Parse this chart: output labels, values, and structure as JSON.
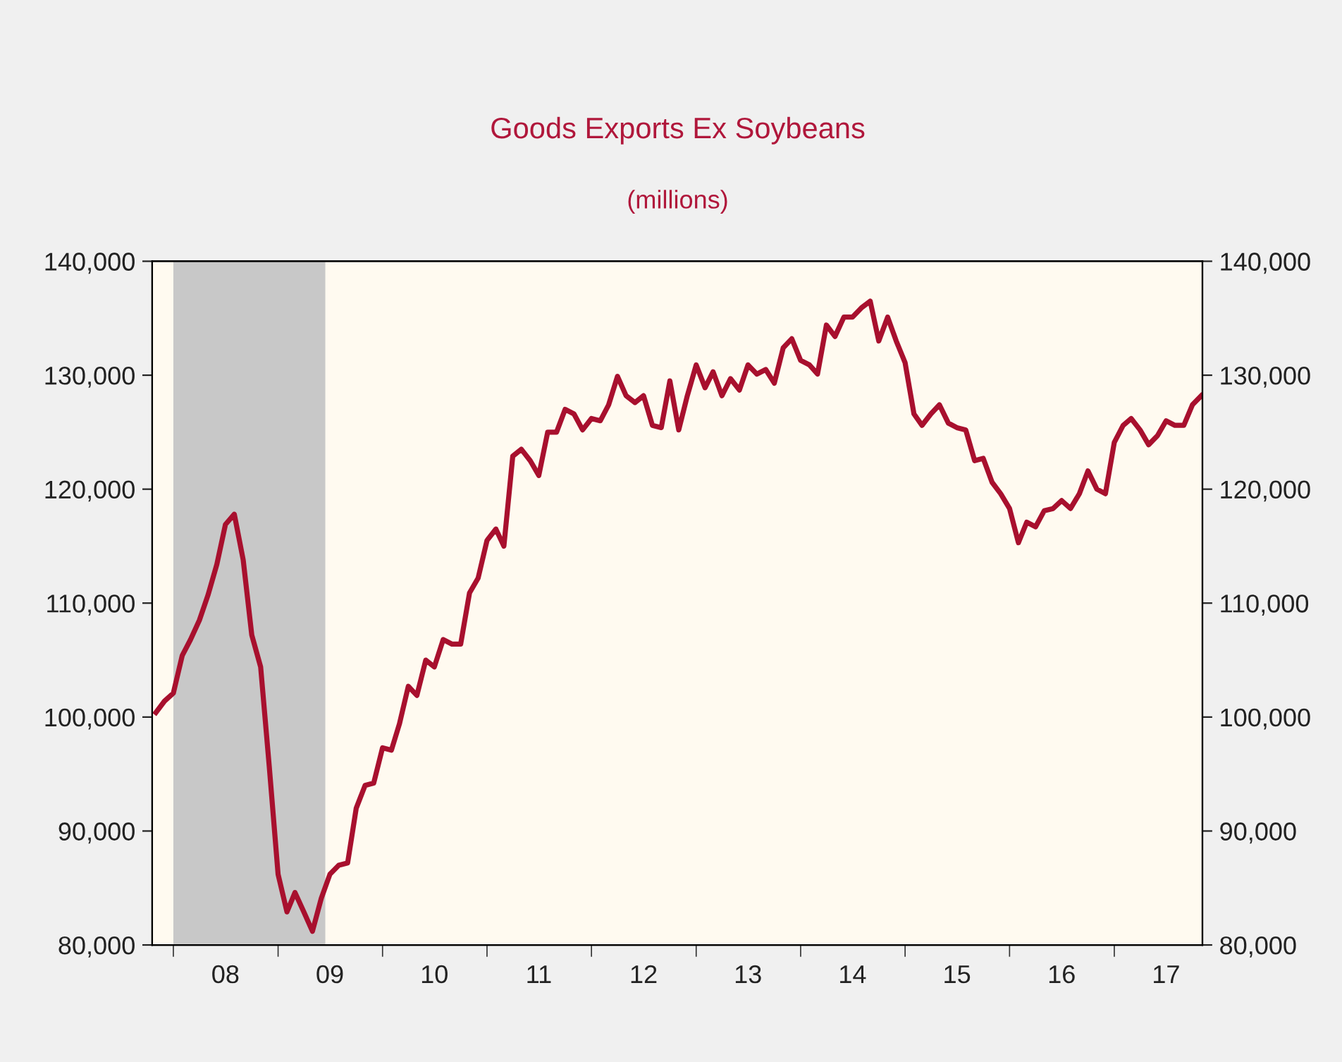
{
  "chart_data": {
    "type": "line",
    "title": "Goods Exports Ex Soybeans",
    "subtitle": "(millions)",
    "x": [
      "2007-11",
      "2007-12",
      "2008-01",
      "2008-02",
      "2008-03",
      "2008-04",
      "2008-05",
      "2008-06",
      "2008-07",
      "2008-08",
      "2008-09",
      "2008-10",
      "2008-11",
      "2008-12",
      "2009-01",
      "2009-02",
      "2009-03",
      "2009-04",
      "2009-05",
      "2009-06",
      "2009-07",
      "2009-08",
      "2009-09",
      "2009-10",
      "2009-11",
      "2009-12",
      "2010-01",
      "2010-02",
      "2010-03",
      "2010-04",
      "2010-05",
      "2010-06",
      "2010-07",
      "2010-08",
      "2010-09",
      "2010-10",
      "2010-11",
      "2010-12",
      "2011-01",
      "2011-02",
      "2011-03",
      "2011-04",
      "2011-05",
      "2011-06",
      "2011-07",
      "2011-08",
      "2011-09",
      "2011-10",
      "2011-11",
      "2011-12",
      "2012-01",
      "2012-02",
      "2012-03",
      "2012-04",
      "2012-05",
      "2012-06",
      "2012-07",
      "2012-08",
      "2012-09",
      "2012-10",
      "2012-11",
      "2012-12",
      "2013-01",
      "2013-02",
      "2013-03",
      "2013-04",
      "2013-05",
      "2013-06",
      "2013-07",
      "2013-08",
      "2013-09",
      "2013-10",
      "2013-11",
      "2013-12",
      "2014-01",
      "2014-02",
      "2014-03",
      "2014-04",
      "2014-05",
      "2014-06",
      "2014-07",
      "2014-08",
      "2014-09",
      "2014-10",
      "2014-11",
      "2014-12",
      "2015-01",
      "2015-02",
      "2015-03",
      "2015-04",
      "2015-05",
      "2015-06",
      "2015-07",
      "2015-08",
      "2015-09",
      "2015-10",
      "2015-11",
      "2015-12",
      "2016-01",
      "2016-02",
      "2016-03",
      "2016-04",
      "2016-05",
      "2016-06",
      "2016-07",
      "2016-08",
      "2016-09",
      "2016-10",
      "2016-11",
      "2016-12",
      "2017-01",
      "2017-02",
      "2017-03",
      "2017-04",
      "2017-05",
      "2017-06",
      "2017-07",
      "2017-08",
      "2017-09",
      "2017-10",
      "2017-11"
    ],
    "series": [
      {
        "color": "#a8102e",
        "values": [
          100400,
          101400,
          102100,
          105400,
          106800,
          108500,
          110700,
          113400,
          116900,
          117800,
          113800,
          107200,
          104400,
          95700,
          86200,
          82900,
          84600,
          82900,
          81200,
          84100,
          86200,
          87000,
          87200,
          92000,
          94000,
          94200,
          97300,
          97100,
          99400,
          102700,
          101900,
          105000,
          104400,
          106800,
          106400,
          106400,
          110900,
          112200,
          115500,
          116500,
          115000,
          122900,
          123500,
          122500,
          121200,
          125000,
          125000,
          127000,
          126600,
          125200,
          126200,
          126000,
          127400,
          129900,
          128200,
          127600,
          128200,
          125600,
          125400,
          129500,
          125200,
          128200,
          130900,
          128900,
          130300,
          128200,
          129700,
          128700,
          130900,
          130100,
          130500,
          129300,
          132400,
          133200,
          131300,
          130900,
          130100,
          134400,
          133400,
          135100,
          135100,
          135900,
          136500,
          133000,
          135100,
          133000,
          131100,
          126600,
          125600,
          126600,
          127400,
          125800,
          125400,
          125200,
          122500,
          122700,
          120600,
          119600,
          118300,
          115300,
          117100,
          116700,
          118100,
          118300,
          119000,
          118300,
          119600,
          121600,
          120000,
          119600,
          124100,
          125600,
          126200,
          125200,
          123900,
          124700,
          126000,
          125600,
          125600,
          127400,
          128200
        ]
      }
    ],
    "xlim": [
      "2007-10-19",
      "2017-11-05"
    ],
    "xticks": [
      {
        "value": "2008-01-01",
        "label": null
      },
      {
        "value": "2008-07-01",
        "label": "08"
      },
      {
        "value": "2009-01-01",
        "label": null
      },
      {
        "value": "2009-07-01",
        "label": "09"
      },
      {
        "value": "2010-01-01",
        "label": null
      },
      {
        "value": "2010-07-01",
        "label": "10"
      },
      {
        "value": "2011-01-01",
        "label": null
      },
      {
        "value": "2011-07-01",
        "label": "11"
      },
      {
        "value": "2012-01-01",
        "label": null
      },
      {
        "value": "2012-07-01",
        "label": "12"
      },
      {
        "value": "2013-01-01",
        "label": null
      },
      {
        "value": "2013-07-01",
        "label": "13"
      },
      {
        "value": "2014-01-01",
        "label": null
      },
      {
        "value": "2014-07-01",
        "label": "14"
      },
      {
        "value": "2015-01-01",
        "label": null
      },
      {
        "value": "2015-07-01",
        "label": "15"
      },
      {
        "value": "2016-01-01",
        "label": null
      },
      {
        "value": "2016-07-01",
        "label": "16"
      },
      {
        "value": "2017-01-01",
        "label": null
      },
      {
        "value": "2017-07-01",
        "label": "17"
      }
    ],
    "ylim": [
      80000,
      140000
    ],
    "yticks": [
      {
        "value": 80000,
        "label": "80,000"
      },
      {
        "value": 90000,
        "label": "90,000"
      },
      {
        "value": 100000,
        "label": "100,000"
      },
      {
        "value": 110000,
        "label": "110,000"
      },
      {
        "value": 120000,
        "label": "120,000"
      },
      {
        "value": 130000,
        "label": "130,000"
      },
      {
        "value": 140000,
        "label": "140,000"
      }
    ],
    "y2lim": [
      80000,
      140000
    ],
    "y2ticks": [
      {
        "value": 80000,
        "label": "80,000"
      },
      {
        "value": 90000,
        "label": "90,000"
      },
      {
        "value": 100000,
        "label": "100,000"
      },
      {
        "value": 110000,
        "label": "110,000"
      },
      {
        "value": 120000,
        "label": "120,000"
      },
      {
        "value": 130000,
        "label": "130,000"
      },
      {
        "value": 140000,
        "label": "140,000"
      }
    ],
    "bands": [
      {
        "axis": "x",
        "from": "2008-01-01",
        "to": "2009-06-15",
        "color": "#c8c8c8"
      }
    ],
    "grid": false,
    "marker": "none",
    "line_style": "solid"
  }
}
